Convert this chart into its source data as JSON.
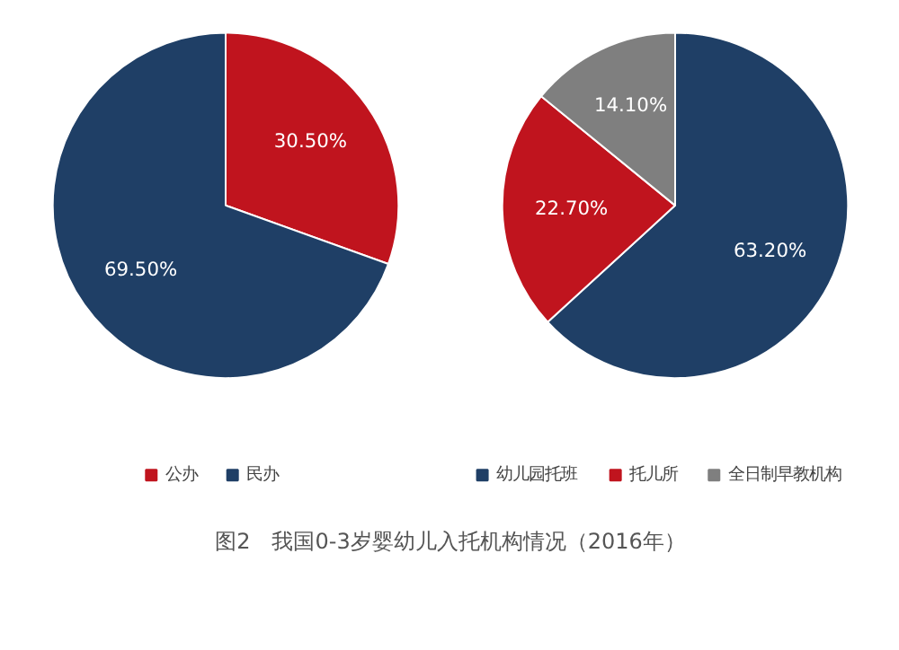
{
  "chart_data": [
    {
      "type": "pie",
      "categories": [
        "公办",
        "民办"
      ],
      "values": [
        30.5,
        69.5
      ],
      "colors": [
        "#c0141e",
        "#1f3f66"
      ],
      "value_labels": [
        "30.50%",
        "69.50%"
      ],
      "legend": "bottom"
    },
    {
      "type": "pie",
      "categories": [
        "幼儿园托班",
        "托儿所",
        "全日制早教机构"
      ],
      "values": [
        63.2,
        22.7,
        14.1
      ],
      "colors": [
        "#1f3f66",
        "#c0141e",
        "#7f7f7f"
      ],
      "value_labels": [
        "63.20%",
        "22.70%",
        "14.10%"
      ],
      "legend": "bottom",
      "annotations": [
        "图2　我国0-3岁婴幼儿入托机构情况（2016年）"
      ]
    }
  ]
}
